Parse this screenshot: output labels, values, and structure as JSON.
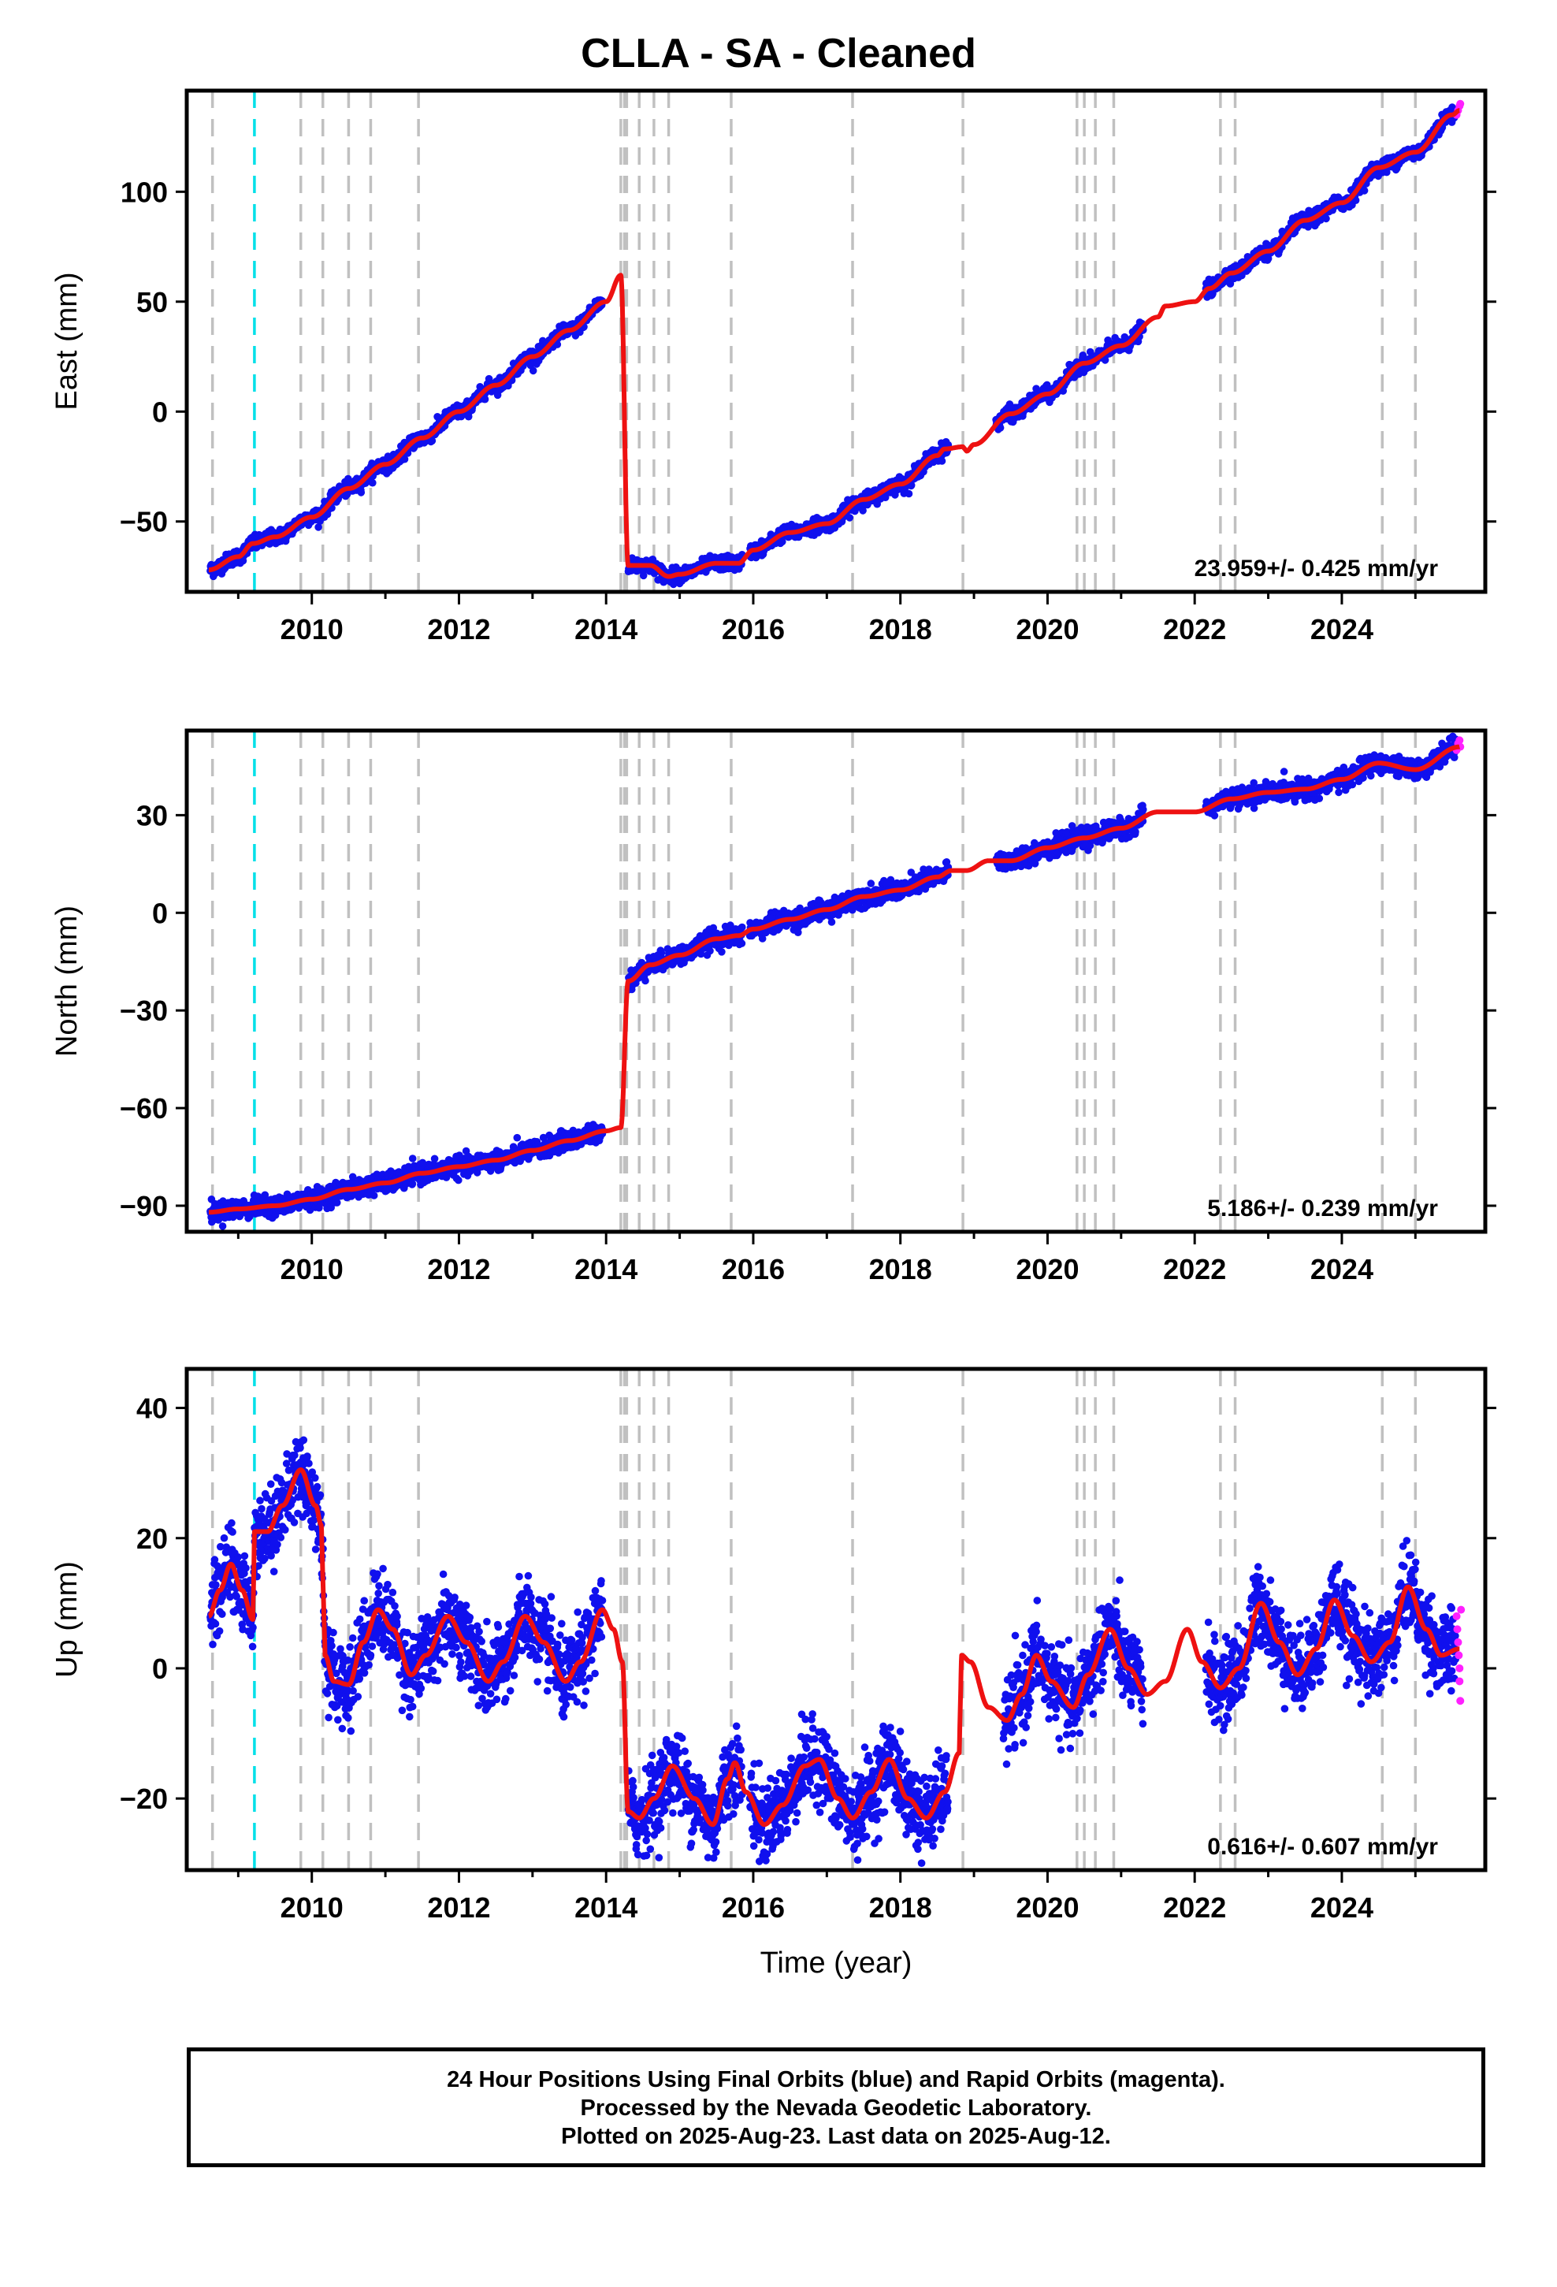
{
  "title": "CLLA  - SA - Cleaned",
  "colors": {
    "final_orbits": "#1010ee",
    "rapid_orbits": "#ff20ff",
    "model": "#ee1111",
    "equipment_change": "#c0c0c0",
    "earthquake": "#00e0e8"
  },
  "footer": {
    "line1": "24 Hour Positions Using Final Orbits (blue) and Rapid Orbits (magenta).",
    "line2": "Processed by the Nevada Geodetic Laboratory.",
    "line3": "Plotted on 2025-Aug-23. Last data on 2025-Aug-12."
  },
  "chart_data": [
    {
      "type": "scatter",
      "panel": "east",
      "ylabel": "East (mm)",
      "xlabel": "",
      "xlim": [
        2008.3,
        2025.95
      ],
      "ylim": [
        -82,
        146
      ],
      "yticks": [
        -50,
        0,
        50,
        100
      ],
      "xticks": [
        2010,
        2012,
        2014,
        2016,
        2018,
        2020,
        2022,
        2024
      ],
      "rate_label": "23.959+/- 0.425 mm/yr",
      "legend": "none",
      "equipment_change_years": [
        2008.65,
        2009.85,
        2010.15,
        2010.5,
        2010.8,
        2011.45,
        2014.2,
        2014.25,
        2014.28,
        2014.45,
        2014.65,
        2014.85,
        2015.7,
        2017.35,
        2018.85,
        2020.4,
        2020.5,
        2020.65,
        2020.9,
        2022.35,
        2022.55,
        2024.55,
        2025.0
      ],
      "earthquake_years": [
        2009.22
      ],
      "model_knots": [
        [
          2008.6,
          -72
        ],
        [
          2009.0,
          -66
        ],
        [
          2009.2,
          -60
        ],
        [
          2009.5,
          -57
        ],
        [
          2010.0,
          -48
        ],
        [
          2010.5,
          -35
        ],
        [
          2011.0,
          -24
        ],
        [
          2011.5,
          -12
        ],
        [
          2012.0,
          0
        ],
        [
          2012.5,
          12
        ],
        [
          2013.0,
          25
        ],
        [
          2013.5,
          37
        ],
        [
          2014.0,
          50
        ],
        [
          2014.2,
          62
        ],
        [
          2014.3,
          -70
        ],
        [
          2014.6,
          -70
        ],
        [
          2014.85,
          -75
        ],
        [
          2015.0,
          -74
        ],
        [
          2015.5,
          -69
        ],
        [
          2015.7,
          -69
        ],
        [
          2015.8,
          -69
        ],
        [
          2016.0,
          -63
        ],
        [
          2016.5,
          -55
        ],
        [
          2017.0,
          -51
        ],
        [
          2017.5,
          -40
        ],
        [
          2018.0,
          -33
        ],
        [
          2018.5,
          -20
        ],
        [
          2018.6,
          -17
        ],
        [
          2018.85,
          -16
        ],
        [
          2018.9,
          -18
        ],
        [
          2019.0,
          -15
        ],
        [
          2019.5,
          -1
        ],
        [
          2020.0,
          8
        ],
        [
          2020.5,
          22
        ],
        [
          2021.0,
          30
        ],
        [
          2021.5,
          43
        ],
        [
          2021.6,
          48
        ],
        [
          2022.0,
          50
        ],
        [
          2022.2,
          56
        ],
        [
          2022.5,
          63
        ],
        [
          2023.0,
          73
        ],
        [
          2023.5,
          87
        ],
        [
          2024.0,
          95
        ],
        [
          2024.5,
          111
        ],
        [
          2025.0,
          118
        ],
        [
          2025.5,
          135
        ],
        [
          2025.6,
          137
        ]
      ],
      "data_gaps": [
        [
          2013.95,
          2014.3
        ],
        [
          2015.85,
          2015.95
        ],
        [
          2018.65,
          2019.3
        ],
        [
          2021.3,
          2022.15
        ]
      ],
      "scatter_noise_mm": 1.6,
      "rapid_points": [
        [
          2025.56,
          135
        ],
        [
          2025.58,
          137
        ],
        [
          2025.6,
          139
        ],
        [
          2025.61,
          140
        ]
      ]
    },
    {
      "type": "scatter",
      "panel": "north",
      "ylabel": "North (mm)",
      "xlabel": "",
      "xlim": [
        2008.3,
        2025.95
      ],
      "ylim": [
        -98,
        56
      ],
      "yticks": [
        -90,
        -60,
        -30,
        0,
        30
      ],
      "xticks": [
        2010,
        2012,
        2014,
        2016,
        2018,
        2020,
        2022,
        2024
      ],
      "rate_label": "5.186+/- 0.239 mm/yr",
      "legend": "none",
      "equipment_change_years": [
        2008.65,
        2009.85,
        2010.15,
        2010.5,
        2010.8,
        2011.45,
        2014.2,
        2014.25,
        2014.28,
        2014.45,
        2014.65,
        2014.85,
        2015.7,
        2017.35,
        2018.85,
        2020.4,
        2020.5,
        2020.65,
        2020.9,
        2022.35,
        2022.55,
        2024.55,
        2025.0
      ],
      "earthquake_years": [
        2009.22
      ],
      "model_knots": [
        [
          2008.6,
          -92
        ],
        [
          2009.0,
          -91
        ],
        [
          2009.5,
          -90
        ],
        [
          2010.0,
          -88
        ],
        [
          2010.5,
          -85
        ],
        [
          2011.0,
          -83
        ],
        [
          2011.5,
          -80
        ],
        [
          2012.0,
          -78
        ],
        [
          2012.5,
          -76
        ],
        [
          2013.0,
          -73
        ],
        [
          2013.5,
          -70
        ],
        [
          2014.0,
          -67
        ],
        [
          2014.2,
          -66
        ],
        [
          2014.3,
          -21
        ],
        [
          2014.6,
          -16
        ],
        [
          2015.0,
          -13
        ],
        [
          2015.5,
          -8
        ],
        [
          2015.8,
          -7
        ],
        [
          2016.0,
          -5
        ],
        [
          2016.5,
          -2
        ],
        [
          2017.0,
          1
        ],
        [
          2017.5,
          5
        ],
        [
          2018.0,
          7
        ],
        [
          2018.5,
          11
        ],
        [
          2018.7,
          13
        ],
        [
          2018.9,
          13
        ],
        [
          2019.2,
          16
        ],
        [
          2019.5,
          16
        ],
        [
          2020.0,
          20
        ],
        [
          2020.5,
          23
        ],
        [
          2021.0,
          26
        ],
        [
          2021.5,
          31
        ],
        [
          2022.0,
          31
        ],
        [
          2022.5,
          35
        ],
        [
          2023.0,
          37
        ],
        [
          2023.5,
          38
        ],
        [
          2024.0,
          41
        ],
        [
          2024.5,
          46
        ],
        [
          2025.0,
          44
        ],
        [
          2025.6,
          51
        ]
      ],
      "data_gaps": [
        [
          2013.95,
          2014.3
        ],
        [
          2015.85,
          2015.95
        ],
        [
          2018.65,
          2019.3
        ],
        [
          2021.3,
          2022.15
        ]
      ],
      "scatter_noise_mm": 1.4,
      "rapid_points": [
        [
          2025.56,
          50
        ],
        [
          2025.58,
          52
        ],
        [
          2025.6,
          53
        ],
        [
          2025.61,
          51
        ]
      ]
    },
    {
      "type": "scatter",
      "panel": "up",
      "ylabel": "Up (mm)",
      "xlabel": "Time (year)",
      "xlim": [
        2008.3,
        2025.95
      ],
      "ylim": [
        -31,
        46
      ],
      "yticks": [
        -20,
        0,
        20,
        40
      ],
      "xticks": [
        2010,
        2012,
        2014,
        2016,
        2018,
        2020,
        2022,
        2024
      ],
      "rate_label": "0.616+/- 0.607 mm/yr",
      "legend": "none",
      "equipment_change_years": [
        2008.65,
        2009.85,
        2010.15,
        2010.5,
        2010.8,
        2011.45,
        2014.2,
        2014.25,
        2014.28,
        2014.45,
        2014.65,
        2014.85,
        2015.7,
        2017.35,
        2018.85,
        2020.4,
        2020.5,
        2020.65,
        2020.9,
        2022.35,
        2022.55,
        2024.55,
        2025.0
      ],
      "earthquake_years": [
        2009.22
      ],
      "model_knots": [
        [
          2008.6,
          8
        ],
        [
          2008.75,
          12
        ],
        [
          2008.9,
          16
        ],
        [
          2009.05,
          12
        ],
        [
          2009.2,
          7.5
        ],
        [
          2009.22,
          21
        ],
        [
          2009.4,
          21
        ],
        [
          2009.6,
          25
        ],
        [
          2009.85,
          30.5
        ],
        [
          2010.05,
          25
        ],
        [
          2010.13,
          22
        ],
        [
          2010.18,
          2
        ],
        [
          2010.3,
          -2
        ],
        [
          2010.5,
          -2.5
        ],
        [
          2010.7,
          4
        ],
        [
          2010.9,
          9
        ],
        [
          2011.1,
          6
        ],
        [
          2011.35,
          -1
        ],
        [
          2011.55,
          2
        ],
        [
          2011.85,
          8
        ],
        [
          2012.1,
          4
        ],
        [
          2012.4,
          -2
        ],
        [
          2012.6,
          1
        ],
        [
          2012.9,
          8
        ],
        [
          2013.15,
          4
        ],
        [
          2013.45,
          -2
        ],
        [
          2013.65,
          1
        ],
        [
          2013.95,
          9
        ],
        [
          2014.1,
          6
        ],
        [
          2014.22,
          1
        ],
        [
          2014.3,
          -22
        ],
        [
          2014.45,
          -23
        ],
        [
          2014.65,
          -20
        ],
        [
          2014.9,
          -15
        ],
        [
          2015.2,
          -20
        ],
        [
          2015.45,
          -24
        ],
        [
          2015.65,
          -17
        ],
        [
          2015.75,
          -14.5
        ],
        [
          2015.9,
          -19
        ],
        [
          2016.15,
          -24
        ],
        [
          2016.4,
          -21
        ],
        [
          2016.7,
          -15
        ],
        [
          2016.9,
          -14
        ],
        [
          2017.15,
          -20
        ],
        [
          2017.35,
          -23
        ],
        [
          2017.6,
          -19
        ],
        [
          2017.85,
          -14
        ],
        [
          2018.1,
          -20
        ],
        [
          2018.35,
          -23
        ],
        [
          2018.6,
          -19
        ],
        [
          2018.8,
          -13
        ],
        [
          2018.83,
          2
        ],
        [
          2018.95,
          1
        ],
        [
          2019.2,
          -6
        ],
        [
          2019.45,
          -8
        ],
        [
          2019.65,
          -4
        ],
        [
          2019.85,
          2
        ],
        [
          2020.05,
          -2
        ],
        [
          2020.35,
          -6
        ],
        [
          2020.55,
          -1
        ],
        [
          2020.85,
          6
        ],
        [
          2021.1,
          0
        ],
        [
          2021.35,
          -4
        ],
        [
          2021.6,
          -2
        ],
        [
          2021.9,
          6
        ],
        [
          2022.1,
          1
        ],
        [
          2022.35,
          -3
        ],
        [
          2022.6,
          0
        ],
        [
          2022.9,
          10
        ],
        [
          2023.15,
          4
        ],
        [
          2023.4,
          -1
        ],
        [
          2023.65,
          3
        ],
        [
          2023.9,
          10.5
        ],
        [
          2024.15,
          5
        ],
        [
          2024.4,
          1
        ],
        [
          2024.65,
          4
        ],
        [
          2024.9,
          12.5
        ],
        [
          2025.15,
          6
        ],
        [
          2025.35,
          2
        ],
        [
          2025.6,
          3
        ]
      ],
      "data_gaps": [
        [
          2013.95,
          2014.3
        ],
        [
          2015.85,
          2015.95
        ],
        [
          2018.65,
          2019.4
        ],
        [
          2021.3,
          2022.15
        ]
      ],
      "scatter_noise_mm": 3.0,
      "rapid_points": [
        [
          2025.56,
          8
        ],
        [
          2025.57,
          6
        ],
        [
          2025.58,
          4
        ],
        [
          2025.59,
          2
        ],
        [
          2025.6,
          0
        ],
        [
          2025.6,
          -2
        ],
        [
          2025.61,
          -5
        ],
        [
          2025.62,
          9
        ]
      ]
    }
  ]
}
